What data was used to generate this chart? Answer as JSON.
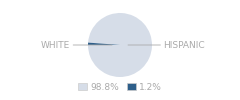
{
  "slices": [
    98.8,
    1.2
  ],
  "labels": [
    "WHITE",
    "HISPANIC"
  ],
  "colors": [
    "#d6dde8",
    "#2e5f8a"
  ],
  "legend_labels": [
    "98.8%",
    "1.2%"
  ],
  "background_color": "#ffffff",
  "text_color": "#aaaaaa",
  "font_size": 6.5,
  "startangle": 180
}
